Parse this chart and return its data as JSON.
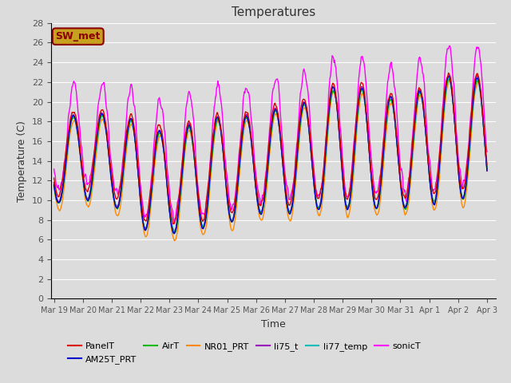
{
  "title": "Temperatures",
  "xlabel": "Time",
  "ylabel": "Temperature (C)",
  "ylim": [
    0,
    28
  ],
  "background_color": "#dcdcdc",
  "figure_background": "#dcdcdc",
  "grid_color": "#ffffff",
  "annotation_text": "SW_met",
  "annotation_color": "#8b0000",
  "annotation_bg": "#c8a020",
  "series": {
    "PanelT": {
      "color": "#dd0000",
      "lw": 1.0
    },
    "AM25T_PRT": {
      "color": "#0000cc",
      "lw": 1.0
    },
    "AirT": {
      "color": "#00bb00",
      "lw": 1.0
    },
    "NR01_PRT": {
      "color": "#ff8800",
      "lw": 1.0
    },
    "li75_t": {
      "color": "#9900bb",
      "lw": 1.0
    },
    "li77_temp": {
      "color": "#00bbbb",
      "lw": 1.0
    },
    "sonicT": {
      "color": "#ff00ff",
      "lw": 1.0
    }
  },
  "tick_labels": [
    "Mar 19",
    "Mar 20",
    "Mar 21",
    "Mar 22",
    "Mar 23",
    "Mar 24",
    "Mar 25",
    "Mar 26",
    "Mar 27",
    "Mar 28",
    "Mar 29",
    "Mar 30",
    "Mar 31",
    "Apr 1",
    "Apr 2",
    "Apr 3"
  ],
  "legend_order": [
    "PanelT",
    "AM25T_PRT",
    "AirT",
    "NR01_PRT",
    "li75_t",
    "li77_temp",
    "sonicT"
  ]
}
